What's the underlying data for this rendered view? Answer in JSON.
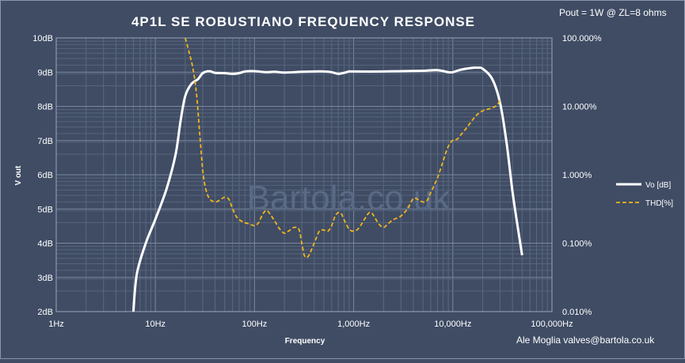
{
  "header": {
    "title": "4P1L SE ROBUSTIANO FREQUENCY RESPONSE",
    "condition": "Pout = 1W @ ZL=8 ohms",
    "credit": "Ale Moglia valves@bartola.co.uk",
    "watermark": "Bartola.co.uk"
  },
  "chart_data": {
    "type": "line",
    "title": "4P1L SE ROBUSTIANO FREQUENCY RESPONSE",
    "xlabel": "Frequency",
    "ylabel": "V out",
    "x_scale": "log",
    "xlim": [
      1,
      100000
    ],
    "ylim": [
      2,
      10
    ],
    "y2_scale": "log",
    "y2lim": [
      0.01,
      100
    ],
    "grid": true,
    "legend_position": "right",
    "x_ticks": [
      "1Hz",
      "10Hz",
      "100Hz",
      "1,000Hz",
      "10,000Hz",
      "100,000Hz"
    ],
    "y_ticks": [
      "2dB",
      "3dB",
      "4dB",
      "5dB",
      "6dB",
      "7dB",
      "8dB",
      "9dB",
      "10dB"
    ],
    "y2_ticks": [
      "0.010%",
      "0.100%",
      "1.000%",
      "10.000%",
      "100.000%"
    ],
    "series": [
      {
        "name": "Vo [dB]",
        "axis": "left",
        "color": "#ffffff",
        "style": "solid",
        "points": [
          [
            6,
            2.0
          ],
          [
            6.5,
            3.1
          ],
          [
            8,
            4.0
          ],
          [
            10,
            4.7
          ],
          [
            13,
            5.6
          ],
          [
            16,
            6.6
          ],
          [
            18,
            7.6
          ],
          [
            20,
            8.3
          ],
          [
            23,
            8.65
          ],
          [
            27,
            8.8
          ],
          [
            30,
            8.97
          ],
          [
            35,
            9.03
          ],
          [
            40,
            8.98
          ],
          [
            50,
            8.97
          ],
          [
            60,
            8.95
          ],
          [
            70,
            8.97
          ],
          [
            80,
            9.02
          ],
          [
            100,
            9.03
          ],
          [
            130,
            9.0
          ],
          [
            160,
            9.01
          ],
          [
            200,
            8.99
          ],
          [
            300,
            9.01
          ],
          [
            400,
            9.02
          ],
          [
            500,
            9.02
          ],
          [
            600,
            9.0
          ],
          [
            700,
            8.95
          ],
          [
            800,
            8.98
          ],
          [
            900,
            9.02
          ],
          [
            1000,
            9.02
          ],
          [
            2000,
            9.02
          ],
          [
            3000,
            9.03
          ],
          [
            5000,
            9.04
          ],
          [
            7000,
            9.06
          ],
          [
            9000,
            9.0
          ],
          [
            10000,
            9.0
          ],
          [
            12000,
            9.07
          ],
          [
            15000,
            9.12
          ],
          [
            18000,
            9.13
          ],
          [
            20000,
            9.1
          ],
          [
            25000,
            8.8
          ],
          [
            30000,
            8.1
          ],
          [
            35000,
            6.9
          ],
          [
            40000,
            5.5
          ],
          [
            45000,
            4.5
          ],
          [
            50000,
            3.65
          ]
        ]
      },
      {
        "name": "THD[%]",
        "axis": "right",
        "color": "#f2b51b",
        "style": "dashed",
        "points": [
          [
            20,
            100
          ],
          [
            22,
            60
          ],
          [
            24,
            35
          ],
          [
            26,
            15
          ],
          [
            28,
            4
          ],
          [
            30,
            1.2
          ],
          [
            32,
            0.65
          ],
          [
            35,
            0.45
          ],
          [
            40,
            0.4
          ],
          [
            45,
            0.43
          ],
          [
            50,
            0.47
          ],
          [
            55,
            0.44
          ],
          [
            60,
            0.32
          ],
          [
            65,
            0.25
          ],
          [
            70,
            0.22
          ],
          [
            80,
            0.2
          ],
          [
            90,
            0.19
          ],
          [
            100,
            0.18
          ],
          [
            110,
            0.2
          ],
          [
            120,
            0.26
          ],
          [
            130,
            0.3
          ],
          [
            140,
            0.28
          ],
          [
            160,
            0.21
          ],
          [
            180,
            0.16
          ],
          [
            200,
            0.14
          ],
          [
            220,
            0.15
          ],
          [
            250,
            0.17
          ],
          [
            280,
            0.16
          ],
          [
            300,
            0.1
          ],
          [
            320,
            0.065
          ],
          [
            350,
            0.065
          ],
          [
            400,
            0.1
          ],
          [
            450,
            0.15
          ],
          [
            500,
            0.155
          ],
          [
            550,
            0.15
          ],
          [
            600,
            0.18
          ],
          [
            650,
            0.25
          ],
          [
            700,
            0.28
          ],
          [
            750,
            0.27
          ],
          [
            800,
            0.22
          ],
          [
            900,
            0.16
          ],
          [
            1000,
            0.15
          ],
          [
            1100,
            0.16
          ],
          [
            1200,
            0.19
          ],
          [
            1400,
            0.27
          ],
          [
            1500,
            0.28
          ],
          [
            1600,
            0.25
          ],
          [
            1800,
            0.19
          ],
          [
            2000,
            0.17
          ],
          [
            2200,
            0.19
          ],
          [
            2500,
            0.22
          ],
          [
            3000,
            0.25
          ],
          [
            3500,
            0.32
          ],
          [
            4000,
            0.45
          ],
          [
            4500,
            0.43
          ],
          [
            5000,
            0.4
          ],
          [
            5500,
            0.42
          ],
          [
            6000,
            0.55
          ],
          [
            7000,
            0.9
          ],
          [
            8000,
            1.6
          ],
          [
            9000,
            2.6
          ],
          [
            10000,
            3.2
          ],
          [
            11000,
            3.3
          ],
          [
            12000,
            3.8
          ],
          [
            14000,
            5.0
          ],
          [
            16000,
            6.5
          ],
          [
            18000,
            7.8
          ],
          [
            20000,
            8.6
          ],
          [
            22000,
            9.0
          ],
          [
            25000,
            9.5
          ],
          [
            28000,
            10.5
          ],
          [
            30000,
            12.5
          ]
        ]
      }
    ]
  }
}
